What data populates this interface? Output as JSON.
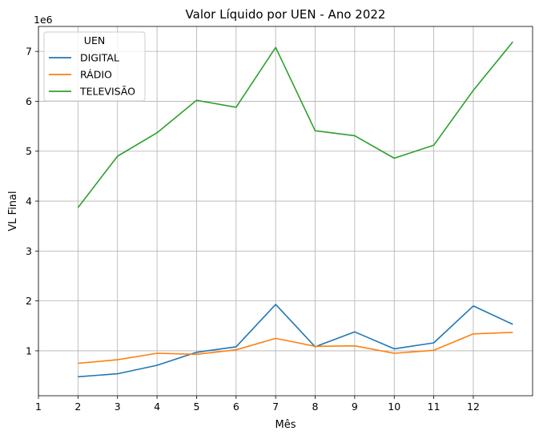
{
  "chart_data": {
    "type": "line",
    "title": "Valor Líquido por UEN - Ano 2022",
    "xlabel": "Mês",
    "ylabel": "VL Final",
    "y_offset_label": "1e6",
    "x_ticks": [
      1,
      2,
      3,
      4,
      5,
      6,
      7,
      8,
      9,
      10,
      11,
      12
    ],
    "y_ticks": [
      1,
      2,
      3,
      4,
      5,
      6,
      7
    ],
    "xlim": [
      1,
      13.5
    ],
    "ylim": [
      0.1,
      7.5
    ],
    "y_scale_note": "values in units of 1e6",
    "grid": true,
    "legend": {
      "title": "UEN",
      "position": "top-left"
    },
    "x": [
      2,
      3,
      4,
      5,
      6,
      7,
      8,
      9,
      10,
      11,
      12,
      13
    ],
    "series": [
      {
        "name": "DIGITAL",
        "color": "#1f77b4",
        "values": [
          0.48,
          0.54,
          0.71,
          0.97,
          1.08,
          1.93,
          1.08,
          1.38,
          1.04,
          1.16,
          1.9,
          1.53
        ]
      },
      {
        "name": "RÁDIO",
        "color": "#ff7f0e",
        "values": [
          0.75,
          0.82,
          0.95,
          0.93,
          1.02,
          1.25,
          1.09,
          1.1,
          0.95,
          1.01,
          1.34,
          1.37
        ]
      },
      {
        "name": "TELEVISÃO",
        "color": "#2ca02c",
        "values": [
          3.87,
          4.9,
          5.37,
          6.02,
          5.88,
          7.08,
          5.41,
          5.31,
          4.86,
          5.12,
          6.22,
          7.19
        ]
      }
    ]
  }
}
